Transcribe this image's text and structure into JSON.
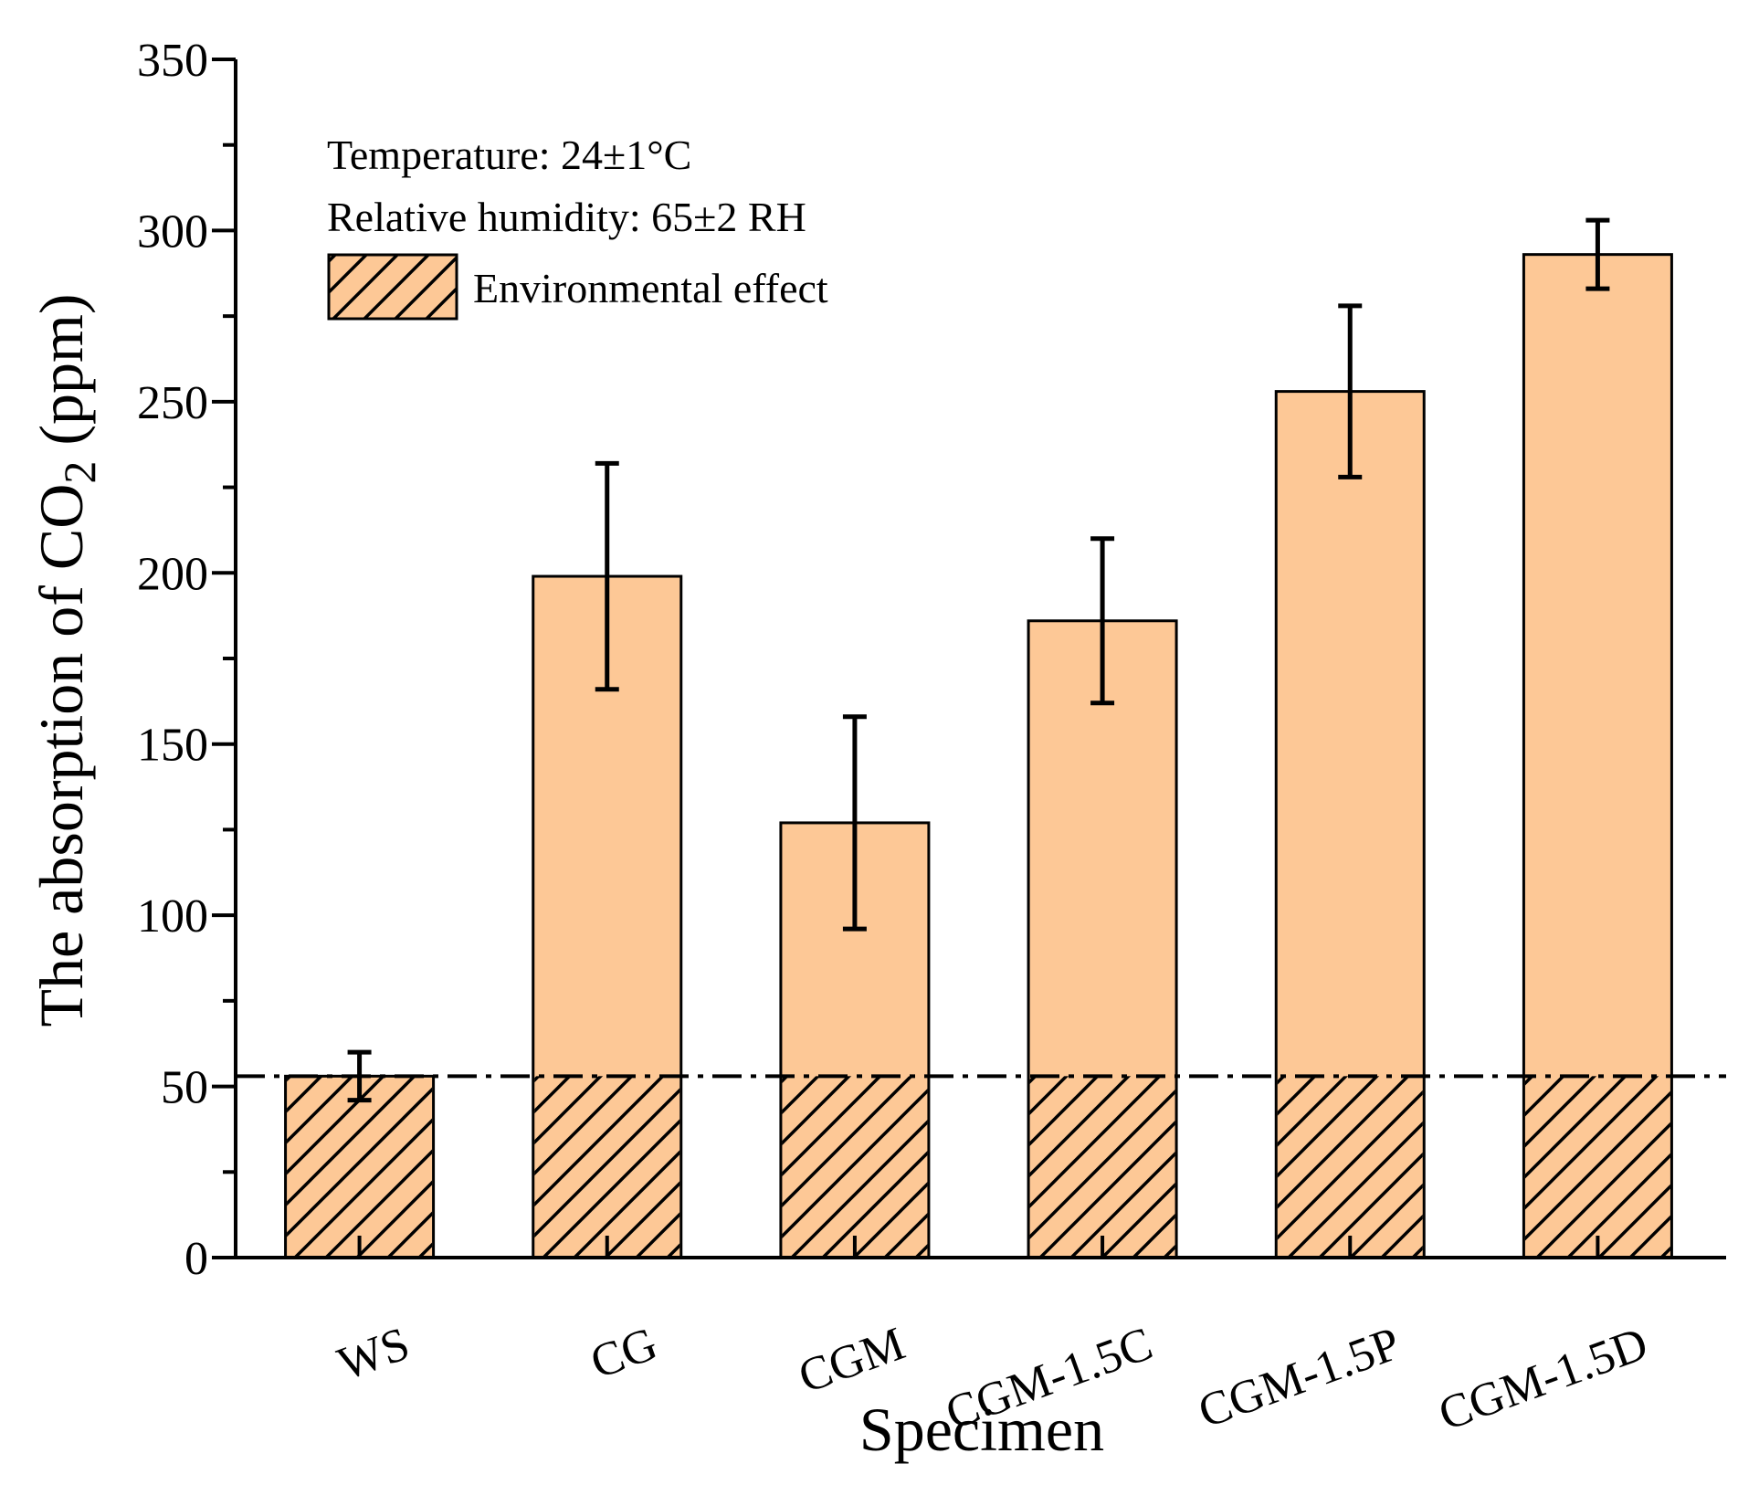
{
  "chart_data": {
    "type": "bar",
    "xlabel": "Specimen",
    "ylabel_main": "The absorption of CO",
    "ylabel_sub": "2",
    "ylabel_unit": " (ppm)",
    "ylim": [
      0,
      350
    ],
    "yticks": [
      0,
      50,
      100,
      150,
      200,
      250,
      300,
      350
    ],
    "ytick_labels": [
      "0",
      "50",
      "100",
      "150",
      "200",
      "250",
      "300",
      "350"
    ],
    "categories": [
      "WS",
      "CG",
      "CGM",
      "CGM-1.5C",
      "CGM-1.5P",
      "CGM-1.5D"
    ],
    "values": [
      53,
      199,
      127,
      186,
      253,
      293
    ],
    "errors": [
      7,
      33,
      31,
      24,
      25,
      10
    ],
    "environmental_effect": 53,
    "legend_label": "Environmental effect",
    "annotations": [
      "Temperature: 24±1°C",
      "Relative humidity: 65±2 RH"
    ],
    "bar_color": "#FDC896",
    "edge_color": "#000000"
  }
}
